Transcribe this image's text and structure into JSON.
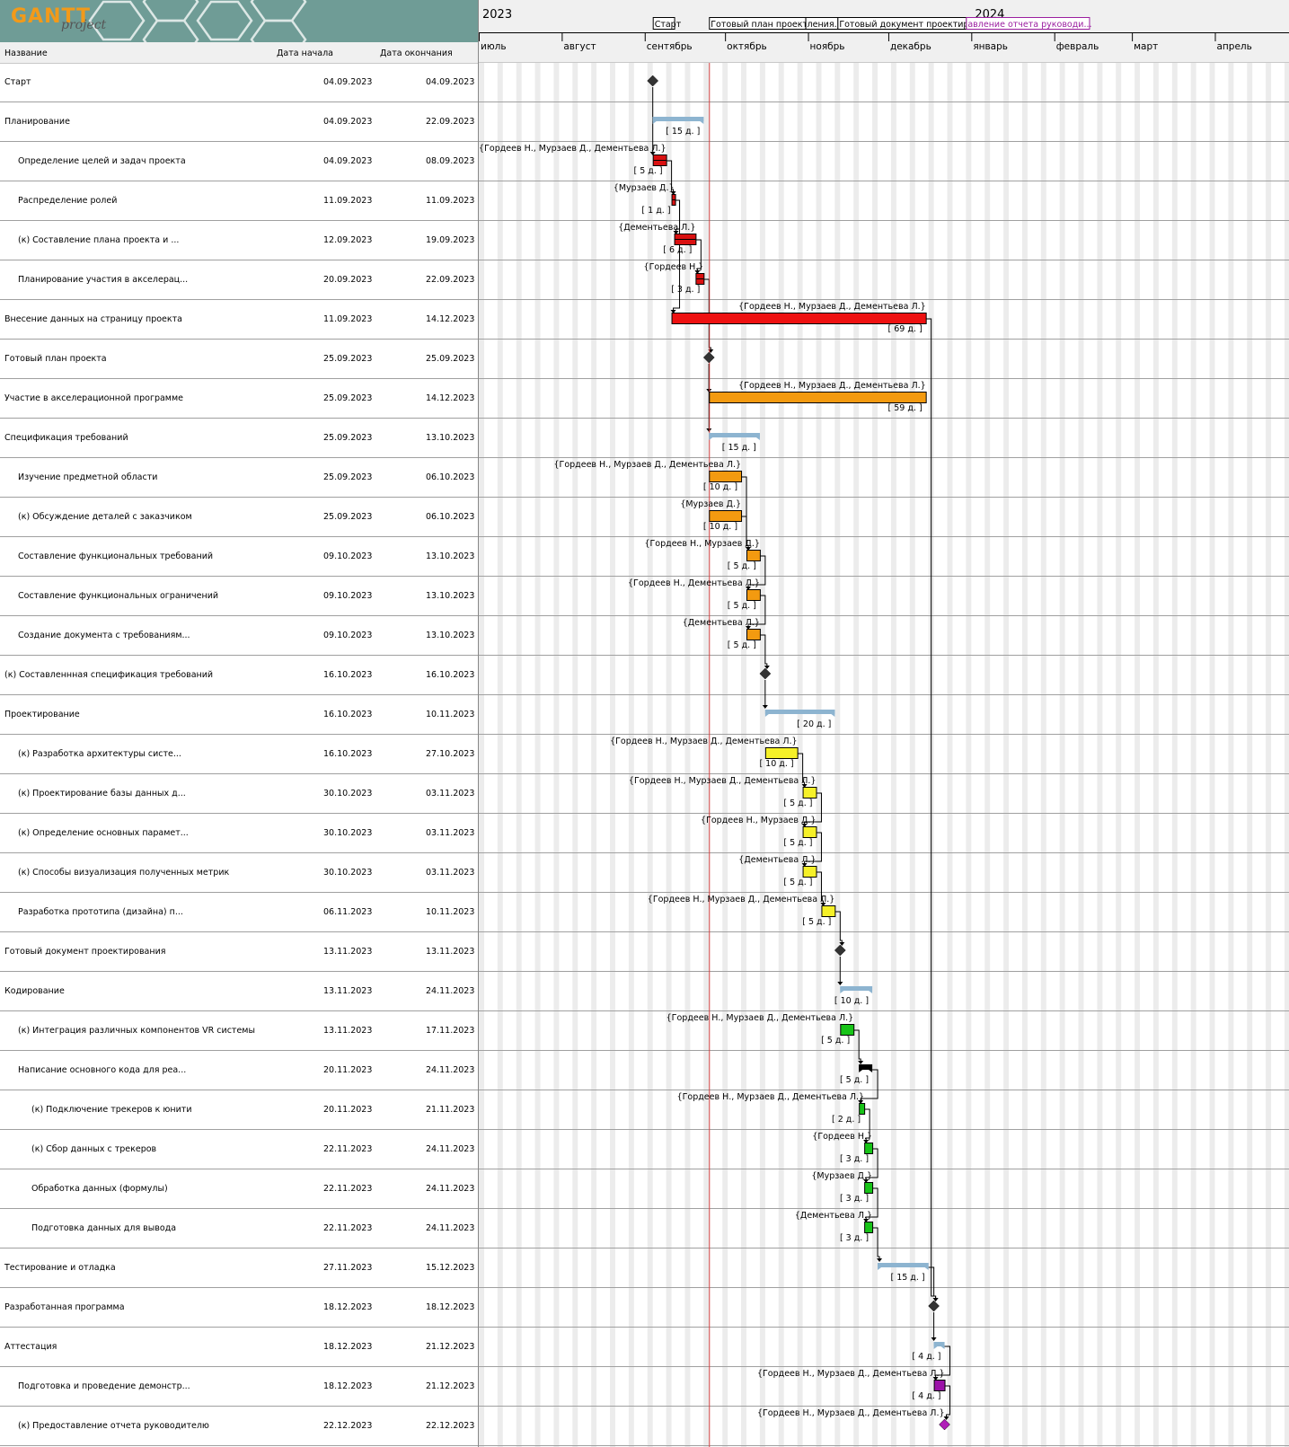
{
  "app": {
    "logo_word": "GANTT",
    "logo_sub": "project"
  },
  "table": {
    "col_name": "Название",
    "col_start": "Дата начала",
    "col_end": "Дата окончания"
  },
  "timeline": {
    "years": [
      {
        "label": "2023",
        "date": "2023-07-01"
      },
      {
        "label": "2024",
        "date": "2024-01-01"
      }
    ],
    "months": [
      {
        "label": "июль",
        "date": "2023-07-01"
      },
      {
        "label": "август",
        "date": "2023-08-01"
      },
      {
        "label": "сентябрь",
        "date": "2023-09-01"
      },
      {
        "label": "октябрь",
        "date": "2023-10-01"
      },
      {
        "label": "ноябрь",
        "date": "2023-11-01"
      },
      {
        "label": "декабрь",
        "date": "2023-12-01"
      },
      {
        "label": "январь",
        "date": "2024-01-01"
      },
      {
        "label": "февраль",
        "date": "2024-02-01"
      },
      {
        "label": "март",
        "date": "2024-03-01"
      },
      {
        "label": "апрель",
        "date": "2024-04-01"
      }
    ],
    "milestone_flags": [
      {
        "label": "Старт",
        "date": "2023-09-04",
        "end": "2023-09-12",
        "color": "#000000"
      },
      {
        "label": "Готовый план проекта",
        "date": "2023-09-25",
        "end": "2023-10-31",
        "color": "#000000"
      },
      {
        "label": "ления...",
        "date": "2023-10-31",
        "end": "2023-11-12",
        "color": "#000000"
      },
      {
        "label": "Готовый документ проектирования",
        "date": "2023-11-12",
        "end": "2023-12-30",
        "color": "#000000"
      },
      {
        "label": "авление отчета руководи...",
        "date": "2023-12-30",
        "end": "2024-02-14",
        "color": "#9b1fa0"
      }
    ],
    "today": "2023-09-25",
    "today_color": "#d04040"
  },
  "tasks": [
    {
      "name": "Старт",
      "start": "04.09.2023",
      "end": "04.09.2023",
      "indent": 0,
      "kind": "milestone",
      "color": "#333333"
    },
    {
      "name": "Планирование",
      "start": "04.09.2023",
      "end": "22.09.2023",
      "indent": 0,
      "kind": "summary",
      "duration": "[ 15 д. ]"
    },
    {
      "name": "Определение целей и задач проекта",
      "start": "04.09.2023",
      "end": "08.09.2023",
      "indent": 1,
      "kind": "task",
      "color": "#d91010",
      "duration": "[ 5 д. ]",
      "res": "{Гордеев Н., Мурзаев Д., Дементьева Л.}"
    },
    {
      "name": "Распределение ролей",
      "start": "11.09.2023",
      "end": "11.09.2023",
      "indent": 1,
      "kind": "task",
      "color": "#d91010",
      "duration": "[ 1 д. ]",
      "res": "{Мурзаев Д.}"
    },
    {
      "name": "(к) Составление плана проекта и ...",
      "start": "12.09.2023",
      "end": "19.09.2023",
      "indent": 1,
      "kind": "task",
      "color": "#d91010",
      "duration": "[ 6 д. ]",
      "res": "{Дементьева Л.}"
    },
    {
      "name": "Планирование участия в акселерац...",
      "start": "20.09.2023",
      "end": "22.09.2023",
      "indent": 1,
      "kind": "task",
      "color": "#d91010",
      "duration": "[ 3 д. ]",
      "res": "{Гордеев Н.}"
    },
    {
      "name": "Внесение данных на страницу проекта",
      "start": "11.09.2023",
      "end": "14.12.2023",
      "indent": 0,
      "kind": "task",
      "color": "#ee1111",
      "duration": "[ 69 д. ]",
      "res": "{Гордеев Н., Мурзаев Д., Дементьева Л.}"
    },
    {
      "name": "Готовый план проекта",
      "start": "25.09.2023",
      "end": "25.09.2023",
      "indent": 0,
      "kind": "milestone",
      "color": "#333333"
    },
    {
      "name": "Участие в акселерационной программе",
      "start": "25.09.2023",
      "end": "14.12.2023",
      "indent": 0,
      "kind": "task",
      "color": "#f39a10",
      "duration": "[ 59 д. ]",
      "res": "{Гордеев Н., Мурзаев Д., Дементьева Л.}"
    },
    {
      "name": "Спецификация требований",
      "start": "25.09.2023",
      "end": "13.10.2023",
      "indent": 0,
      "kind": "summary",
      "duration": "[ 15 д. ]"
    },
    {
      "name": "Изучение предметной области",
      "start": "25.09.2023",
      "end": "06.10.2023",
      "indent": 1,
      "kind": "task",
      "color": "#f39a10",
      "duration": "[ 10 д. ]",
      "res": "{Гордеев Н., Мурзаев Д., Дементьева Л.}"
    },
    {
      "name": "(к) Обсуждение деталей с заказчиком",
      "start": "25.09.2023",
      "end": "06.10.2023",
      "indent": 1,
      "kind": "task",
      "color": "#f39a10",
      "duration": "[ 10 д. ]",
      "res": "{Мурзаев Д.}"
    },
    {
      "name": "Составление функциональных требований",
      "start": "09.10.2023",
      "end": "13.10.2023",
      "indent": 1,
      "kind": "task",
      "color": "#f39a10",
      "duration": "[ 5 д. ]",
      "res": "{Гордеев Н., Мурзаев Д.}"
    },
    {
      "name": "Составление функциональных ограничений",
      "start": "09.10.2023",
      "end": "13.10.2023",
      "indent": 1,
      "kind": "task",
      "color": "#f39a10",
      "duration": "[ 5 д. ]",
      "res": "{Гордеев Н., Дементьева Л.}"
    },
    {
      "name": "Создание документа с требованиям...",
      "start": "09.10.2023",
      "end": "13.10.2023",
      "indent": 1,
      "kind": "task",
      "color": "#f39a10",
      "duration": "[ 5 д. ]",
      "res": "{Дементьева Л.}"
    },
    {
      "name": "(к) Составленнная спецификация требований",
      "start": "16.10.2023",
      "end": "16.10.2023",
      "indent": 0,
      "kind": "milestone",
      "color": "#333333"
    },
    {
      "name": "Проектирование",
      "start": "16.10.2023",
      "end": "10.11.2023",
      "indent": 0,
      "kind": "summary",
      "duration": "[ 20 д. ]"
    },
    {
      "name": "(к) Разработка архитектуры систе...",
      "start": "16.10.2023",
      "end": "27.10.2023",
      "indent": 1,
      "kind": "task",
      "color": "#f5f028",
      "duration": "[ 10 д. ]",
      "res": "{Гордеев Н., Мурзаев Д., Дементьева Л.}"
    },
    {
      "name": "(к) Проектирование базы данных д...",
      "start": "30.10.2023",
      "end": "03.11.2023",
      "indent": 1,
      "kind": "task",
      "color": "#f5f028",
      "duration": "[ 5 д. ]",
      "res": "{Гордеев Н., Мурзаев Д., Дементьева Л.}"
    },
    {
      "name": "(к) Определение основных парамет...",
      "start": "30.10.2023",
      "end": "03.11.2023",
      "indent": 1,
      "kind": "task",
      "color": "#f5f028",
      "duration": "[ 5 д. ]",
      "res": "{Гордеев Н., Мурзаев Д.}"
    },
    {
      "name": "(к) Способы визуализация полученных метрик",
      "start": "30.10.2023",
      "end": "03.11.2023",
      "indent": 1,
      "kind": "task",
      "color": "#f5f028",
      "duration": "[ 5 д. ]",
      "res": "{Дементьева Л.}"
    },
    {
      "name": "Разработка прототипа (дизайна) п...",
      "start": "06.11.2023",
      "end": "10.11.2023",
      "indent": 1,
      "kind": "task",
      "color": "#f5f028",
      "duration": "[ 5 д. ]",
      "res": "{Гордеев Н., Мурзаев Д., Дементьева Л.}"
    },
    {
      "name": "Готовый документ проектирования",
      "start": "13.11.2023",
      "end": "13.11.2023",
      "indent": 0,
      "kind": "milestone",
      "color": "#333333"
    },
    {
      "name": "Кодирование",
      "start": "13.11.2023",
      "end": "24.11.2023",
      "indent": 0,
      "kind": "summary",
      "duration": "[ 10 д. ]"
    },
    {
      "name": "(к) Интеграция различных компонентов VR системы",
      "start": "13.11.2023",
      "end": "17.11.2023",
      "indent": 1,
      "kind": "task",
      "color": "#18c418",
      "duration": "[ 5 д. ]",
      "res": "{Гордеев Н., Мурзаев Д., Дементьева Л.}"
    },
    {
      "name": "Написание основного кода для реа...",
      "start": "20.11.2023",
      "end": "24.11.2023",
      "indent": 1,
      "kind": "black",
      "duration": "[ 5 д. ]"
    },
    {
      "name": "(к) Подключение трекеров к юнити",
      "start": "20.11.2023",
      "end": "21.11.2023",
      "indent": 2,
      "kind": "task",
      "color": "#18c418",
      "duration": "[ 2 д. ]",
      "res": "{Гордеев Н., Мурзаев Д., Дементьева Л.}"
    },
    {
      "name": "(к) Сбор данных с трекеров",
      "start": "22.11.2023",
      "end": "24.11.2023",
      "indent": 2,
      "kind": "task",
      "color": "#18c418",
      "duration": "[ 3 д. ]",
      "res": "{Гордеев Н.}"
    },
    {
      "name": "Обработка данных (формулы)",
      "start": "22.11.2023",
      "end": "24.11.2023",
      "indent": 2,
      "kind": "task",
      "color": "#18c418",
      "duration": "[ 3 д. ]",
      "res": "{Мурзаев Д.}"
    },
    {
      "name": "Подготовка данных для вывода",
      "start": "22.11.2023",
      "end": "24.11.2023",
      "indent": 2,
      "kind": "task",
      "color": "#18c418",
      "duration": "[ 3 д. ]",
      "res": "{Дементьева Л.}"
    },
    {
      "name": "Тестирование и отладка",
      "start": "27.11.2023",
      "end": "15.12.2023",
      "indent": 0,
      "kind": "summary",
      "duration": "[ 15 д. ]"
    },
    {
      "name": "Разработанная программа",
      "start": "18.12.2023",
      "end": "18.12.2023",
      "indent": 0,
      "kind": "milestone",
      "color": "#333333"
    },
    {
      "name": "Аттестация",
      "start": "18.12.2023",
      "end": "21.12.2023",
      "indent": 0,
      "kind": "summary",
      "duration": "[ 4 д. ]"
    },
    {
      "name": "Подготовка и проведение демонстр...",
      "start": "18.12.2023",
      "end": "21.12.2023",
      "indent": 1,
      "kind": "task",
      "color": "#9b12a8",
      "duration": "[ 4 д. ]",
      "res": "{Гордеев Н., Мурзаев Д., Дементьева Л.}"
    },
    {
      "name": "(к) Предоставление отчета руководителю",
      "start": "22.12.2023",
      "end": "22.12.2023",
      "indent": 1,
      "kind": "milestone",
      "color": "#b020b8",
      "res": "{Гордеев Н., Мурзаев Д., Дементьева Л.}"
    }
  ],
  "dependencies": [
    [
      0,
      2
    ],
    [
      2,
      3
    ],
    [
      3,
      4
    ],
    [
      4,
      5
    ],
    [
      5,
      7
    ],
    [
      3,
      6
    ],
    [
      7,
      8
    ],
    [
      7,
      9
    ],
    [
      10,
      12
    ],
    [
      11,
      12
    ],
    [
      12,
      13
    ],
    [
      13,
      14
    ],
    [
      14,
      15
    ],
    [
      15,
      16
    ],
    [
      17,
      18
    ],
    [
      18,
      19
    ],
    [
      19,
      20
    ],
    [
      20,
      21
    ],
    [
      21,
      22
    ],
    [
      22,
      23
    ],
    [
      24,
      25
    ],
    [
      25,
      26
    ],
    [
      26,
      27
    ],
    [
      27,
      28
    ],
    [
      28,
      29
    ],
    [
      29,
      30
    ],
    [
      6,
      31
    ],
    [
      30,
      31
    ],
    [
      31,
      32
    ],
    [
      32,
      33
    ],
    [
      33,
      34
    ]
  ]
}
